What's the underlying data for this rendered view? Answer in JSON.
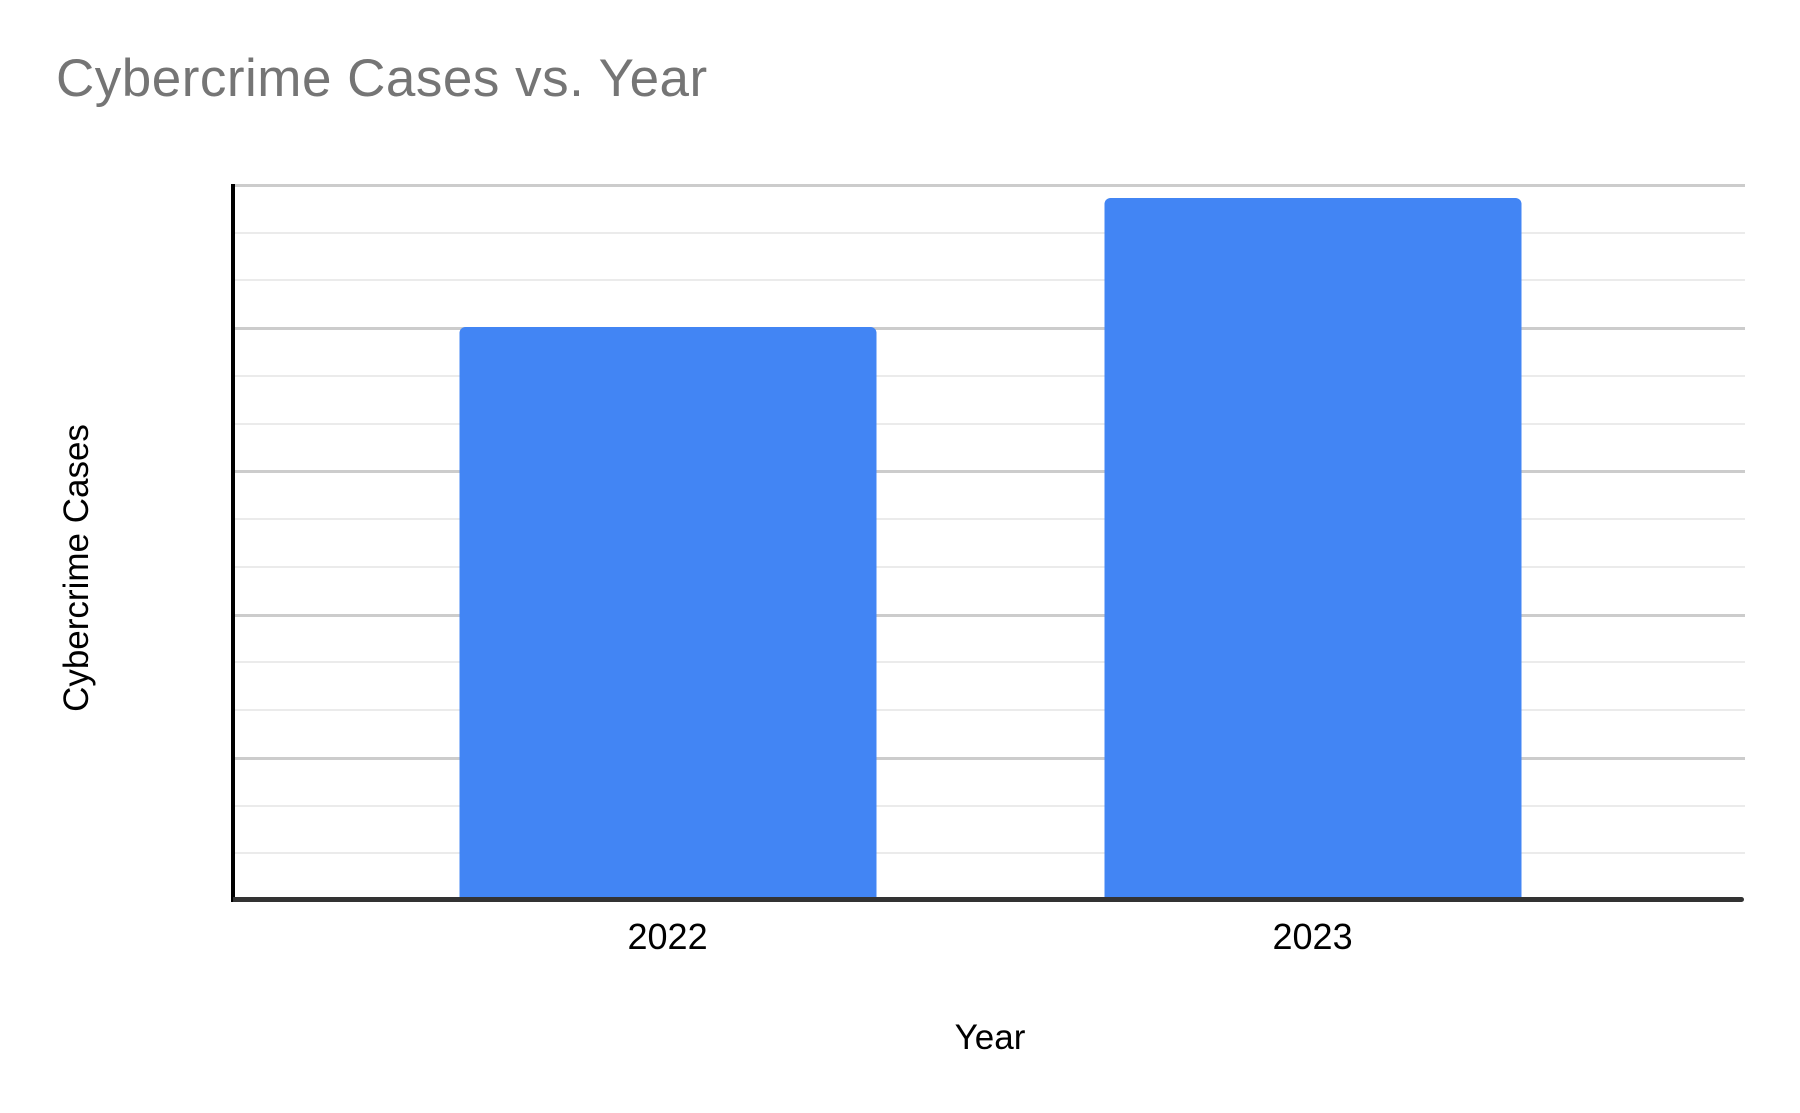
{
  "chart_data": {
    "type": "bar",
    "title": "Cybercrime Cases vs. Year",
    "xlabel": "Year",
    "ylabel": "Cybercrime Cases",
    "categories": [
      "2022",
      "2023"
    ],
    "values": [
      12,
      14.7
    ],
    "ylim": [
      0,
      15
    ],
    "y_tick_labels_visible": false,
    "x_tick_labels_visible": true,
    "legend": "none",
    "grid": {
      "orientation": "horizontal",
      "minor_intervals": 15,
      "major_every": 3
    },
    "bar_color": "#4285f4",
    "bars": [
      {
        "category": "2022",
        "value": 12,
        "center_frac": 0.2874
      },
      {
        "category": "2023",
        "value": 14.7,
        "center_frac": 0.714
      }
    ],
    "bar_width_frac": 0.2758,
    "value_note": "y-axis shows no numeric tick labels; values are expressed in minor-gridline units (2022 bar tops exactly on the 12th gridline, 2023 bar at ~14.7 of 15)"
  },
  "colors": {
    "background": "#ffffff",
    "title_text": "#757575",
    "axis_text": "#000000",
    "bar_fill": "#4285f4",
    "gridline_major": "#cccccc",
    "gridline_minor": "#ebebeb",
    "x_axis_line": "#333333",
    "y_axis_line": "#000000"
  }
}
